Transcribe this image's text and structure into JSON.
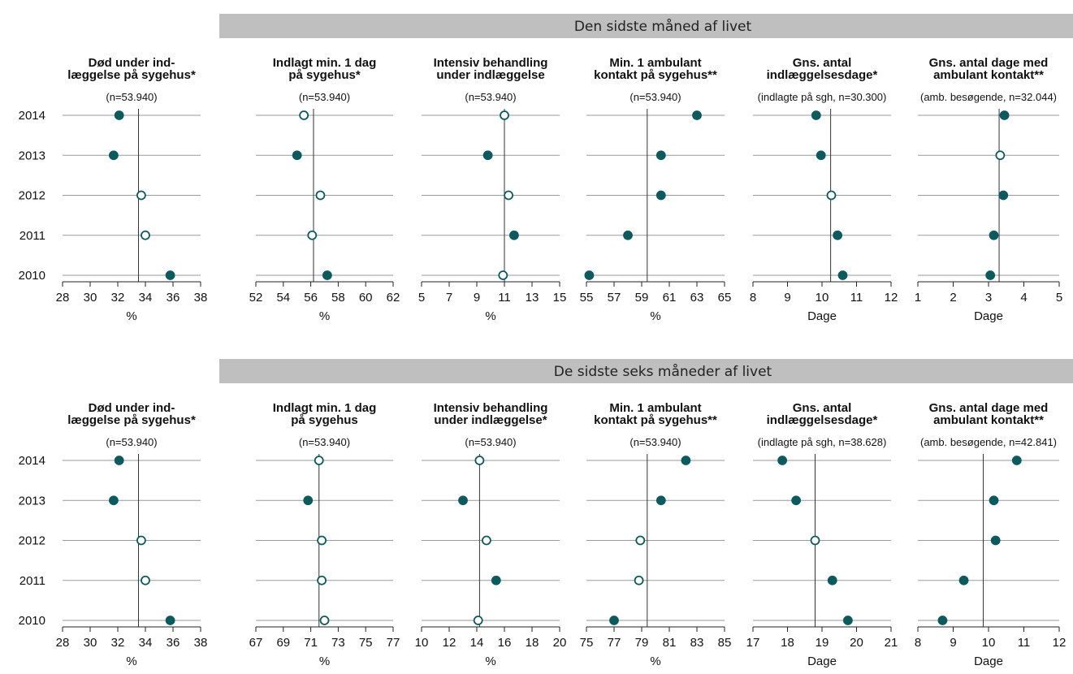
{
  "colors": {
    "marker": "#0d5a5e",
    "marker_open_fill": "#ffffff",
    "banner": "#bfbfbf"
  },
  "chart_data": [
    {
      "section": "Den sidste måned af livet",
      "panels": [
        {
          "type": "scatter",
          "title": [
            "Død under ind-",
            "læggelse på sygehus*"
          ],
          "subtitle": "(n=53.940)",
          "xlabel": "%",
          "xlim": [
            28,
            38
          ],
          "xticks": [
            28,
            30,
            32,
            34,
            36,
            38
          ],
          "ref": 33.5,
          "points": [
            {
              "year": "2014",
              "value": 32.1,
              "filled": true
            },
            {
              "year": "2013",
              "value": 31.7,
              "filled": true
            },
            {
              "year": "2012",
              "value": 33.7,
              "filled": false
            },
            {
              "year": "2011",
              "value": 34.0,
              "filled": false
            },
            {
              "year": "2010",
              "value": 35.8,
              "filled": true
            }
          ]
        },
        {
          "type": "scatter",
          "title": [
            "Indlagt min. 1 dag",
            "på sygehus*"
          ],
          "subtitle": "(n=53.940)",
          "xlabel": "%",
          "xlim": [
            52,
            62
          ],
          "xticks": [
            52,
            54,
            56,
            58,
            60,
            62
          ],
          "ref": 56.2,
          "points": [
            {
              "year": "2014",
              "value": 55.5,
              "filled": false
            },
            {
              "year": "2013",
              "value": 55.0,
              "filled": true
            },
            {
              "year": "2012",
              "value": 56.7,
              "filled": false
            },
            {
              "year": "2011",
              "value": 56.1,
              "filled": false
            },
            {
              "year": "2010",
              "value": 57.2,
              "filled": true
            }
          ]
        },
        {
          "type": "scatter",
          "title": [
            "Intensiv behandling",
            "under indlæggelse"
          ],
          "subtitle": "(n=53.940)",
          "xlabel": "%",
          "xlim": [
            5,
            15
          ],
          "xticks": [
            5,
            7,
            9,
            11,
            13,
            15
          ],
          "ref": 11.0,
          "points": [
            {
              "year": "2014",
              "value": 11.0,
              "filled": false
            },
            {
              "year": "2013",
              "value": 9.8,
              "filled": true
            },
            {
              "year": "2012",
              "value": 11.3,
              "filled": false
            },
            {
              "year": "2011",
              "value": 11.7,
              "filled": true
            },
            {
              "year": "2010",
              "value": 10.9,
              "filled": false
            }
          ]
        },
        {
          "type": "scatter",
          "title": [
            "Min. 1 ambulant",
            "kontakt på sygehus**"
          ],
          "subtitle": "(n=53.940)",
          "xlabel": "%",
          "xlim": [
            55,
            65
          ],
          "xticks": [
            55,
            57,
            59,
            61,
            63,
            65
          ],
          "ref": 59.4,
          "points": [
            {
              "year": "2014",
              "value": 63.0,
              "filled": true
            },
            {
              "year": "2013",
              "value": 60.4,
              "filled": true
            },
            {
              "year": "2012",
              "value": 60.4,
              "filled": true
            },
            {
              "year": "2011",
              "value": 58.0,
              "filled": true
            },
            {
              "year": "2010",
              "value": 55.2,
              "filled": true
            }
          ]
        },
        {
          "type": "scatter",
          "title": [
            "Gns. antal",
            "indlæggelsesdage*"
          ],
          "subtitle": "(indlagte på sgh, n=30.300)",
          "xlabel": "Dage",
          "xlim": [
            8,
            12
          ],
          "xticks": [
            8,
            9,
            10,
            11,
            12
          ],
          "ref": 10.25,
          "points": [
            {
              "year": "2014",
              "value": 9.83,
              "filled": true
            },
            {
              "year": "2013",
              "value": 9.97,
              "filled": true
            },
            {
              "year": "2012",
              "value": 10.27,
              "filled": false
            },
            {
              "year": "2011",
              "value": 10.45,
              "filled": true
            },
            {
              "year": "2010",
              "value": 10.6,
              "filled": true
            }
          ]
        },
        {
          "type": "scatter",
          "title": [
            "Gns. antal dage med",
            "ambulant kontakt**"
          ],
          "subtitle": "(amb. besøgende, n=32.044)",
          "xlabel": "Dage",
          "xlim": [
            1,
            5
          ],
          "xticks": [
            1,
            2,
            3,
            4,
            5
          ],
          "ref": 3.3,
          "points": [
            {
              "year": "2014",
              "value": 3.45,
              "filled": true
            },
            {
              "year": "2013",
              "value": 3.33,
              "filled": false
            },
            {
              "year": "2012",
              "value": 3.42,
              "filled": true
            },
            {
              "year": "2011",
              "value": 3.15,
              "filled": true
            },
            {
              "year": "2010",
              "value": 3.05,
              "filled": true
            }
          ]
        }
      ]
    },
    {
      "section": "De sidste seks måneder af livet",
      "panels": [
        {
          "type": "scatter",
          "title": [
            "Død under ind-",
            "læggelse på sygehus*"
          ],
          "subtitle": "(n=53.940)",
          "xlabel": "%",
          "xlim": [
            28,
            38
          ],
          "xticks": [
            28,
            30,
            32,
            34,
            36,
            38
          ],
          "ref": 33.5,
          "points": [
            {
              "year": "2014",
              "value": 32.1,
              "filled": true
            },
            {
              "year": "2013",
              "value": 31.7,
              "filled": true
            },
            {
              "year": "2012",
              "value": 33.7,
              "filled": false
            },
            {
              "year": "2011",
              "value": 34.0,
              "filled": false
            },
            {
              "year": "2010",
              "value": 35.8,
              "filled": true
            }
          ]
        },
        {
          "type": "scatter",
          "title": [
            "Indlagt min. 1 dag",
            "på sygehus"
          ],
          "subtitle": "(n=53.940)",
          "xlabel": "%",
          "xlim": [
            67,
            77
          ],
          "xticks": [
            67,
            69,
            71,
            73,
            75,
            77
          ],
          "ref": 71.6,
          "points": [
            {
              "year": "2014",
              "value": 71.6,
              "filled": false
            },
            {
              "year": "2013",
              "value": 70.8,
              "filled": true
            },
            {
              "year": "2012",
              "value": 71.8,
              "filled": false
            },
            {
              "year": "2011",
              "value": 71.8,
              "filled": false
            },
            {
              "year": "2010",
              "value": 72.0,
              "filled": false
            }
          ]
        },
        {
          "type": "scatter",
          "title": [
            "Intensiv behandling",
            "under indlæggelse*"
          ],
          "subtitle": "(n=53.940)",
          "xlabel": "%",
          "xlim": [
            10,
            20
          ],
          "xticks": [
            10,
            12,
            14,
            16,
            18,
            20
          ],
          "ref": 14.2,
          "points": [
            {
              "year": "2014",
              "value": 14.2,
              "filled": false
            },
            {
              "year": "2013",
              "value": 13.0,
              "filled": true
            },
            {
              "year": "2012",
              "value": 14.7,
              "filled": false
            },
            {
              "year": "2011",
              "value": 15.4,
              "filled": true
            },
            {
              "year": "2010",
              "value": 14.1,
              "filled": false
            }
          ]
        },
        {
          "type": "scatter",
          "title": [
            "Min. 1 ambulant",
            "kontakt på sygehus**"
          ],
          "subtitle": "(n=53.940)",
          "xlabel": "%",
          "xlim": [
            75,
            85
          ],
          "xticks": [
            75,
            77,
            79,
            81,
            83,
            85
          ],
          "ref": 79.4,
          "points": [
            {
              "year": "2014",
              "value": 82.2,
              "filled": true
            },
            {
              "year": "2013",
              "value": 80.4,
              "filled": true
            },
            {
              "year": "2012",
              "value": 78.9,
              "filled": false
            },
            {
              "year": "2011",
              "value": 78.8,
              "filled": false
            },
            {
              "year": "2010",
              "value": 77.0,
              "filled": true
            }
          ]
        },
        {
          "type": "scatter",
          "title": [
            "Gns. antal",
            "indlæggelsesdage*"
          ],
          "subtitle": "(indlagte på sgh, n=38.628)",
          "xlabel": "Dage",
          "xlim": [
            17,
            21
          ],
          "xticks": [
            17,
            18,
            19,
            20,
            21
          ],
          "ref": 18.8,
          "points": [
            {
              "year": "2014",
              "value": 17.85,
              "filled": true
            },
            {
              "year": "2013",
              "value": 18.25,
              "filled": true
            },
            {
              "year": "2012",
              "value": 18.8,
              "filled": false
            },
            {
              "year": "2011",
              "value": 19.3,
              "filled": true
            },
            {
              "year": "2010",
              "value": 19.75,
              "filled": true
            }
          ]
        },
        {
          "type": "scatter",
          "title": [
            "Gns. antal dage med",
            "ambulant kontakt**"
          ],
          "subtitle": "(amb. besøgende, n=42.841)",
          "xlabel": "Dage",
          "xlim": [
            8,
            12
          ],
          "xticks": [
            8,
            9,
            10,
            11,
            12
          ],
          "ref": 9.85,
          "points": [
            {
              "year": "2014",
              "value": 10.8,
              "filled": true
            },
            {
              "year": "2013",
              "value": 10.15,
              "filled": true
            },
            {
              "year": "2012",
              "value": 10.2,
              "filled": true
            },
            {
              "year": "2011",
              "value": 9.3,
              "filled": true
            },
            {
              "year": "2010",
              "value": 8.7,
              "filled": true
            }
          ]
        }
      ]
    }
  ]
}
